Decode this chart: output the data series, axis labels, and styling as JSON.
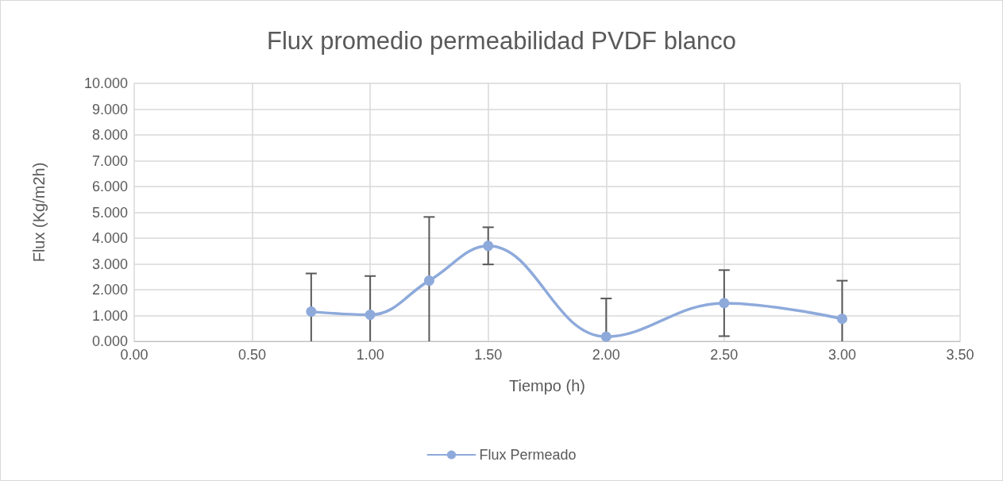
{
  "chart_data": {
    "type": "line",
    "title": "Flux promedio permeabilidad PVDF blanco",
    "xlabel": "Tiempo (h)",
    "ylabel": "Flux (Kg/m2h)",
    "x": [
      0.75,
      1.0,
      1.25,
      1.5,
      2.0,
      2.5,
      3.0
    ],
    "series": [
      {
        "name": "Flux Permeado",
        "color": "#8eaadb",
        "values": [
          1.15,
          1.03,
          2.35,
          3.7,
          0.18,
          1.48,
          0.87
        ],
        "errors": [
          [
            0,
            2.63
          ],
          [
            0,
            2.53
          ],
          [
            0,
            4.82
          ],
          0.72,
          [
            0,
            1.66
          ],
          1.28,
          [
            0,
            2.35
          ]
        ]
      }
    ],
    "xlim": [
      0,
      3.5
    ],
    "xticks": [
      {
        "value": 0,
        "label": "0.00"
      },
      {
        "value": 0.5,
        "label": "0.50"
      },
      {
        "value": 1,
        "label": "1.00"
      },
      {
        "value": 1.5,
        "label": "1.50"
      },
      {
        "value": 2,
        "label": "2.00"
      },
      {
        "value": 2.5,
        "label": "2.50"
      },
      {
        "value": 3,
        "label": "3.00"
      },
      {
        "value": 3.5,
        "label": "3.50"
      }
    ],
    "ylim": [
      0,
      10
    ],
    "yticks": [
      {
        "value": 0,
        "label": "0.000"
      },
      {
        "value": 1,
        "label": "1.000"
      },
      {
        "value": 2,
        "label": "2.000"
      },
      {
        "value": 3,
        "label": "3.000"
      },
      {
        "value": 4,
        "label": "4.000"
      },
      {
        "value": 5,
        "label": "5.000"
      },
      {
        "value": 6,
        "label": "6.000"
      },
      {
        "value": 7,
        "label": "7.000"
      },
      {
        "value": 8,
        "label": "8.000"
      },
      {
        "value": 9,
        "label": "9.000"
      },
      {
        "value": 10,
        "label": "10.000"
      }
    ],
    "grid": true,
    "legend": "bottom",
    "marker": "circle",
    "line_style": "solid"
  }
}
